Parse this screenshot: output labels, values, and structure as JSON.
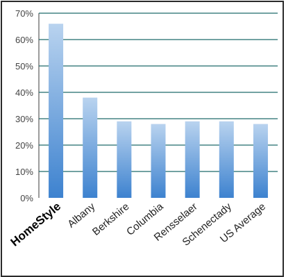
{
  "chart_data": {
    "type": "bar",
    "title": "",
    "xlabel": "",
    "ylabel": "",
    "categories": [
      "HomeStyle",
      "Albany",
      "Berkshire",
      "Columbia",
      "Rensselaer",
      "Schenectady",
      "US Average"
    ],
    "values": [
      66,
      38,
      29,
      28,
      29,
      29,
      28
    ],
    "value_unit": "%",
    "ylim": [
      0,
      70
    ],
    "yticks": [
      0,
      10,
      20,
      30,
      40,
      50,
      60,
      70
    ],
    "ytick_labels": [
      "0%",
      "10%",
      "20%",
      "30%",
      "40%",
      "50%",
      "60%",
      "70%"
    ],
    "grid": true,
    "legend": "none",
    "highlight_category": "HomeStyle",
    "colors": {
      "bar_top": "#b9d3ef",
      "bar_bottom": "#3d82cf",
      "grid": "#1f6a6a"
    }
  }
}
